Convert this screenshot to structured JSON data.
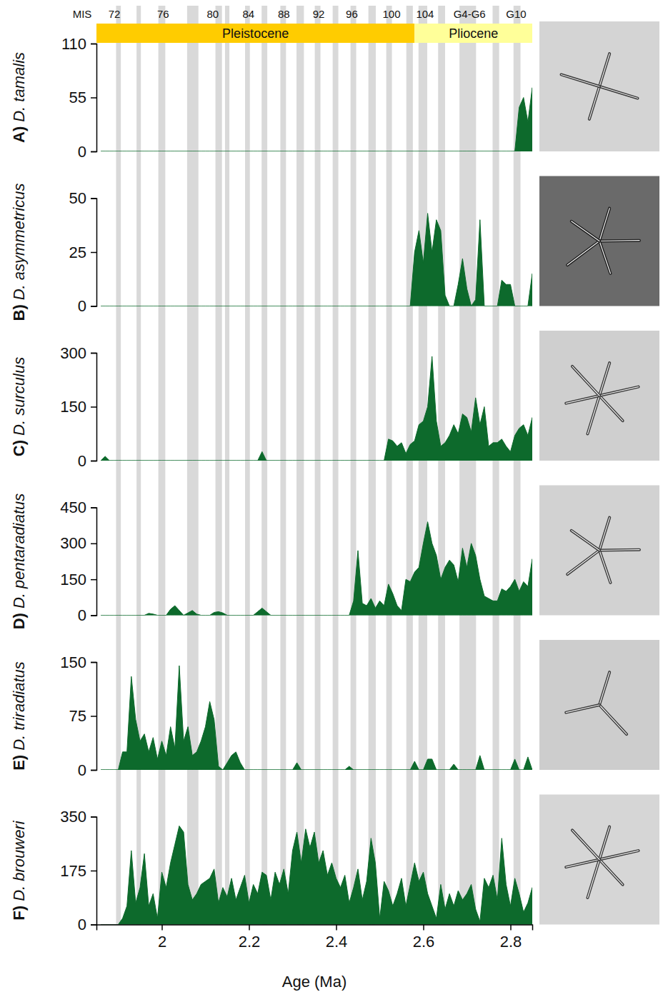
{
  "chart_data": {
    "type": "area",
    "color": "#0d6a2c",
    "xlabel": "Age (Ma)",
    "xlim": [
      1.85,
      2.85
    ],
    "xticks": [
      2,
      2.2,
      2.4,
      2.6,
      2.8
    ],
    "mis_title": "MIS",
    "mis": [
      {
        "label": "72",
        "x": 1.891
      },
      {
        "label": "76",
        "x": 2.003
      },
      {
        "label": "80",
        "x": 2.117
      },
      {
        "label": "84",
        "x": 2.199
      },
      {
        "label": "88",
        "x": 2.28
      },
      {
        "label": "92",
        "x": 2.36
      },
      {
        "label": "96",
        "x": 2.436
      },
      {
        "label": "100",
        "x": 2.527
      },
      {
        "label": "104",
        "x": 2.604
      },
      {
        "label": "G4-G6",
        "x": 2.706
      },
      {
        "label": "G10",
        "x": 2.813
      }
    ],
    "epochs": [
      {
        "name": "Pleistocene",
        "start": 1.85,
        "end": 2.58,
        "color": "#ffcc00"
      },
      {
        "name": "Pliocene",
        "start": 2.58,
        "end": 2.85,
        "color": "#ffff99"
      }
    ],
    "bands": [
      [
        1.895,
        1.906
      ],
      [
        1.942,
        1.952
      ],
      [
        1.992,
        2.008
      ],
      [
        2.058,
        2.084
      ],
      [
        2.123,
        2.138
      ],
      [
        2.145,
        2.155
      ],
      [
        2.191,
        2.202
      ],
      [
        2.229,
        2.242
      ],
      [
        2.272,
        2.285
      ],
      [
        2.309,
        2.326
      ],
      [
        2.351,
        2.364
      ],
      [
        2.392,
        2.405
      ],
      [
        2.433,
        2.446
      ],
      [
        2.474,
        2.491
      ],
      [
        2.515,
        2.528
      ],
      [
        2.561,
        2.576
      ],
      [
        2.589,
        2.609
      ],
      [
        2.634,
        2.65
      ],
      [
        2.683,
        2.721
      ],
      [
        2.759,
        2.774
      ],
      [
        2.807,
        2.823
      ]
    ],
    "x": [
      1.86,
      1.87,
      1.88,
      1.89,
      1.9,
      1.91,
      1.92,
      1.93,
      1.94,
      1.95,
      1.96,
      1.97,
      1.98,
      1.99,
      2,
      2.01,
      2.02,
      2.03,
      2.04,
      2.05,
      2.06,
      2.07,
      2.08,
      2.09,
      2.1,
      2.11,
      2.12,
      2.13,
      2.14,
      2.15,
      2.16,
      2.17,
      2.18,
      2.19,
      2.2,
      2.21,
      2.22,
      2.23,
      2.24,
      2.25,
      2.26,
      2.27,
      2.28,
      2.29,
      2.3,
      2.31,
      2.32,
      2.33,
      2.34,
      2.35,
      2.36,
      2.37,
      2.38,
      2.39,
      2.4,
      2.41,
      2.42,
      2.43,
      2.44,
      2.45,
      2.46,
      2.47,
      2.48,
      2.49,
      2.5,
      2.51,
      2.52,
      2.53,
      2.54,
      2.55,
      2.56,
      2.57,
      2.58,
      2.59,
      2.6,
      2.61,
      2.62,
      2.63,
      2.64,
      2.65,
      2.66,
      2.67,
      2.68,
      2.69,
      2.7,
      2.71,
      2.72,
      2.73,
      2.74,
      2.75,
      2.76,
      2.77,
      2.78,
      2.79,
      2.8,
      2.81,
      2.82,
      2.83,
      2.84,
      2.85
    ],
    "series": [
      {
        "letter": "A)",
        "name": "D. tamalis",
        "ylim": [
          0,
          110
        ],
        "yticks": [
          0,
          55,
          110
        ],
        "values": [
          0,
          0,
          0,
          0,
          0,
          0,
          0,
          0,
          0,
          0,
          0,
          0,
          0,
          0,
          0,
          0,
          0,
          0,
          0,
          0,
          0,
          0,
          0,
          0,
          0,
          0,
          0,
          0,
          0,
          0,
          0,
          0,
          0,
          0,
          0,
          0,
          0,
          0,
          0,
          0,
          0,
          0,
          0,
          0,
          0,
          0,
          0,
          0,
          0,
          0,
          0,
          0,
          0,
          0,
          0,
          0,
          0,
          0,
          0,
          0,
          0,
          0,
          0,
          0,
          0,
          0,
          0,
          0,
          0,
          0,
          0,
          0,
          0,
          0,
          0,
          0,
          0,
          0,
          0,
          0,
          0,
          0,
          0,
          0,
          0,
          0,
          0,
          0,
          0,
          0,
          0,
          0,
          0,
          0,
          0,
          0,
          45,
          55,
          30,
          65
        ]
      },
      {
        "letter": "B)",
        "name": "D. asymmetricus",
        "ylim": [
          0,
          50
        ],
        "yticks": [
          0,
          25,
          50
        ],
        "values": [
          0,
          0,
          0,
          0,
          0,
          0,
          0,
          0,
          0,
          0,
          0,
          0,
          0,
          0,
          0,
          0,
          0,
          0,
          0,
          0,
          0,
          0,
          0,
          0,
          0,
          0,
          0,
          0,
          0,
          0,
          0,
          0,
          0,
          0,
          0,
          0,
          0,
          0,
          0,
          0,
          0,
          0,
          0,
          0,
          0,
          0,
          0,
          0,
          0,
          0,
          0,
          0,
          0,
          0,
          0,
          0,
          0,
          0,
          0,
          0,
          0,
          0,
          0,
          0,
          0,
          0,
          0,
          0,
          0,
          0,
          0,
          0,
          25,
          35,
          20,
          43,
          25,
          40,
          35,
          5,
          0,
          0,
          10,
          22,
          8,
          0,
          3,
          40,
          0,
          0,
          0,
          0,
          12,
          10,
          10,
          0,
          0,
          0,
          0,
          15
        ]
      },
      {
        "letter": "C)",
        "name": "D. surculus",
        "ylim": [
          0,
          300
        ],
        "yticks": [
          0,
          150,
          300
        ],
        "values": [
          0,
          12,
          0,
          0,
          0,
          0,
          0,
          0,
          0,
          0,
          0,
          0,
          0,
          0,
          0,
          0,
          0,
          0,
          0,
          0,
          0,
          0,
          0,
          0,
          0,
          0,
          0,
          0,
          0,
          0,
          0,
          0,
          0,
          0,
          0,
          0,
          0,
          25,
          0,
          0,
          0,
          0,
          0,
          0,
          0,
          0,
          0,
          0,
          0,
          0,
          0,
          0,
          0,
          0,
          0,
          0,
          0,
          0,
          0,
          0,
          0,
          0,
          0,
          0,
          0,
          0,
          60,
          55,
          40,
          50,
          20,
          45,
          55,
          100,
          110,
          150,
          290,
          110,
          40,
          50,
          70,
          100,
          75,
          130,
          120,
          80,
          175,
          100,
          150,
          40,
          50,
          50,
          60,
          40,
          25,
          70,
          90,
          100,
          70,
          120
        ]
      },
      {
        "letter": "D)",
        "name": "D. pentaradiatus",
        "ylim": [
          0,
          450
        ],
        "yticks": [
          0,
          150,
          300,
          450
        ],
        "values": [
          0,
          0,
          0,
          0,
          0,
          0,
          0,
          0,
          0,
          0,
          0,
          8,
          5,
          0,
          0,
          0,
          25,
          40,
          20,
          0,
          10,
          20,
          5,
          0,
          0,
          0,
          12,
          15,
          10,
          0,
          0,
          0,
          0,
          0,
          0,
          0,
          15,
          30,
          15,
          0,
          0,
          0,
          0,
          0,
          0,
          0,
          0,
          0,
          0,
          0,
          0,
          0,
          0,
          0,
          0,
          0,
          0,
          0,
          60,
          270,
          50,
          40,
          70,
          30,
          60,
          40,
          130,
          90,
          40,
          20,
          150,
          140,
          180,
          200,
          300,
          390,
          300,
          250,
          150,
          200,
          230,
          210,
          140,
          280,
          200,
          300,
          250,
          150,
          80,
          70,
          60,
          60,
          110,
          100,
          120,
          150,
          100,
          140,
          120,
          235
        ]
      },
      {
        "letter": "E)",
        "name": "D. triradiatus",
        "ylim": [
          0,
          150
        ],
        "yticks": [
          0,
          75,
          150
        ],
        "values": [
          0,
          0,
          0,
          0,
          0,
          25,
          25,
          130,
          70,
          40,
          50,
          25,
          45,
          15,
          40,
          20,
          60,
          30,
          145,
          40,
          60,
          20,
          25,
          40,
          60,
          95,
          70,
          5,
          0,
          10,
          20,
          25,
          10,
          0,
          0,
          0,
          0,
          0,
          0,
          0,
          0,
          0,
          0,
          0,
          0,
          10,
          0,
          0,
          0,
          0,
          0,
          0,
          0,
          0,
          0,
          0,
          0,
          5,
          0,
          0,
          0,
          0,
          0,
          0,
          0,
          0,
          0,
          0,
          0,
          0,
          0,
          0,
          12,
          0,
          0,
          15,
          15,
          0,
          0,
          0,
          0,
          8,
          0,
          0,
          0,
          0,
          0,
          20,
          0,
          0,
          0,
          0,
          0,
          0,
          0,
          15,
          0,
          0,
          18,
          0
        ]
      },
      {
        "letter": "F)",
        "name": "D. brouweri",
        "ylim": [
          0,
          350
        ],
        "yticks": [
          0,
          175,
          350
        ],
        "values": [
          0,
          0,
          0,
          0,
          0,
          20,
          60,
          240,
          70,
          120,
          230,
          60,
          100,
          20,
          170,
          120,
          200,
          260,
          320,
          300,
          130,
          80,
          100,
          130,
          140,
          150,
          180,
          70,
          120,
          90,
          150,
          80,
          120,
          160,
          70,
          130,
          100,
          170,
          160,
          80,
          170,
          130,
          180,
          100,
          240,
          300,
          200,
          310,
          250,
          300,
          200,
          240,
          160,
          200,
          150,
          120,
          160,
          70,
          120,
          180,
          80,
          140,
          280,
          200,
          20,
          140,
          110,
          60,
          100,
          150,
          60,
          130,
          200,
          140,
          170,
          100,
          60,
          20,
          130,
          50,
          100,
          60,
          110,
          80,
          100,
          130,
          50,
          10,
          150,
          120,
          160,
          80,
          280,
          130,
          60,
          150,
          100,
          40,
          70,
          120
        ]
      }
    ]
  }
}
